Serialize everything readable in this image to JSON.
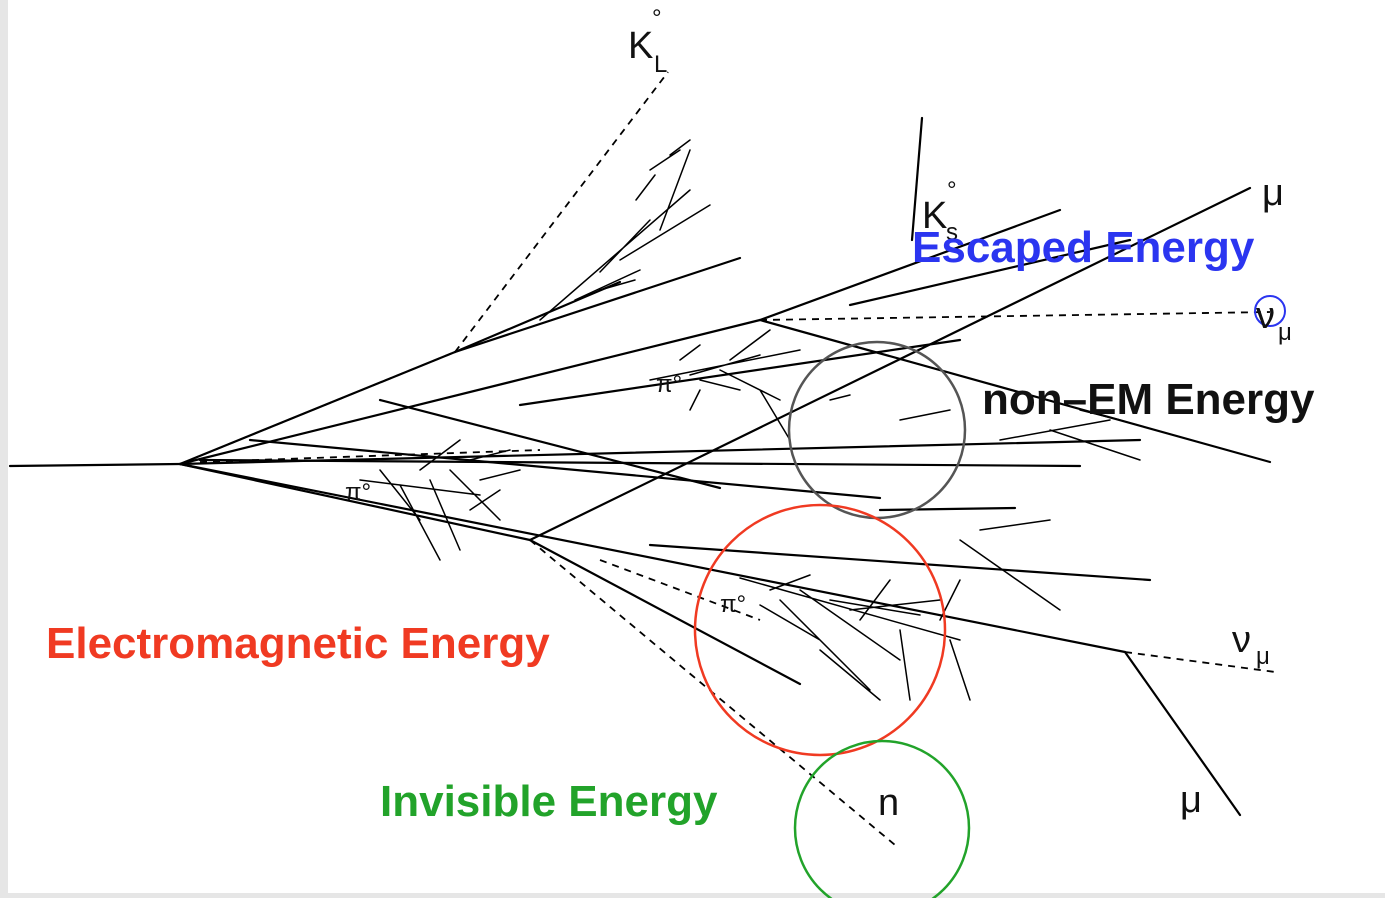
{
  "labels": {
    "escaped": "Escaped Energy",
    "non_em": "non–EM Energy",
    "em": "Electromagnetic Energy",
    "invisible": "Invisible Energy"
  },
  "particles": {
    "kl_base": "K",
    "kl_sub": "L",
    "kl_sup": "°",
    "ks_base": "K",
    "ks_sub": "s",
    "ks_sup": "°",
    "mu_top": "μ",
    "nu_top_base": "ν",
    "nu_top_sub": "μ",
    "pi_upper": "π°",
    "pi_left": "π°",
    "pi_lower": "π°",
    "nu_bottom_base": "ν",
    "nu_bottom_sub": "μ",
    "mu_bottom": "μ",
    "neutron": "n"
  },
  "colors": {
    "escaped": "#2b35f0",
    "non_em": "#111111",
    "em": "#f03a22",
    "invisible": "#22a32a",
    "circle_non_em": "#555555",
    "tracks": "#000000"
  }
}
